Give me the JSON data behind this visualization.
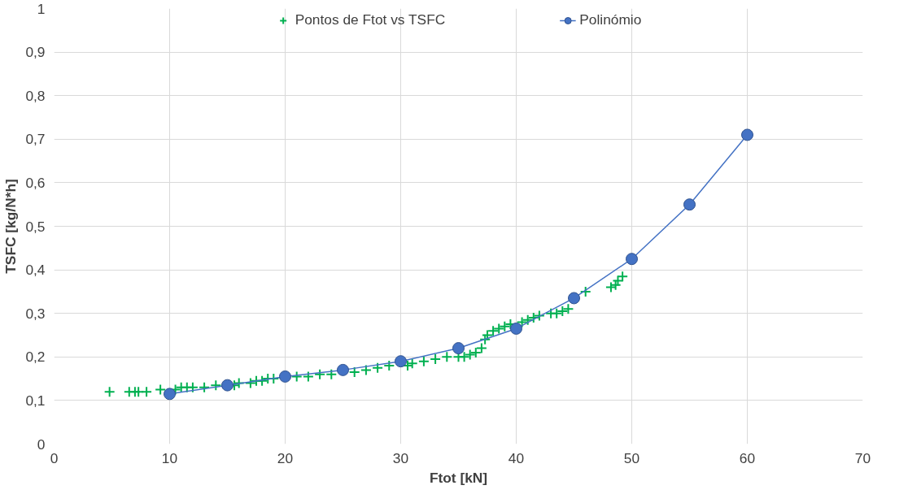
{
  "chart_data": {
    "type": "scatter",
    "xlabel": "Ftot [kN]",
    "ylabel": "TSFC [kg/N*h]",
    "xlim": [
      0,
      70
    ],
    "ylim": [
      0,
      1
    ],
    "xticks": [
      0,
      10,
      20,
      30,
      40,
      50,
      60,
      70
    ],
    "yticks": [
      0,
      {
        "value": 0.1,
        "label": "0,1"
      },
      {
        "value": 0.2,
        "label": "0,2"
      },
      {
        "value": 0.3,
        "label": "0,3"
      },
      {
        "value": 0.4,
        "label": "0,4"
      },
      {
        "value": 0.5,
        "label": "0,5"
      },
      {
        "value": 0.6,
        "label": "0,6"
      },
      {
        "value": 0.7,
        "label": "0,7"
      },
      {
        "value": 0.8,
        "label": "0,8"
      },
      {
        "value": 0.9,
        "label": "0,9"
      },
      1
    ],
    "grid": true,
    "legend": "top",
    "series": [
      {
        "name": "Pontos de Ftot vs TSFC",
        "marker": "cross",
        "color": "#00b050",
        "x": [
          4.8,
          6.5,
          7.0,
          7.3,
          8,
          9.2,
          10.5,
          11,
          11.5,
          12,
          13,
          14,
          15.6,
          16,
          17,
          17.5,
          18,
          18.5,
          19,
          21,
          22,
          23,
          24,
          26,
          27,
          28,
          29,
          30.6,
          31,
          32,
          33,
          34,
          35,
          35.5,
          36,
          36.5,
          37,
          37.3,
          37.5,
          38,
          38.5,
          39,
          39.5,
          40.5,
          41,
          41.5,
          42,
          43,
          43.5,
          44,
          44.5,
          46,
          48.2,
          48.6,
          48.8,
          49.2
        ],
        "values": [
          0.12,
          0.12,
          0.12,
          0.12,
          0.12,
          0.125,
          0.125,
          0.13,
          0.13,
          0.13,
          0.13,
          0.135,
          0.135,
          0.14,
          0.14,
          0.145,
          0.145,
          0.15,
          0.15,
          0.155,
          0.155,
          0.16,
          0.16,
          0.165,
          0.17,
          0.175,
          0.18,
          0.18,
          0.185,
          0.19,
          0.195,
          0.2,
          0.2,
          0.2,
          0.205,
          0.21,
          0.22,
          0.24,
          0.25,
          0.26,
          0.265,
          0.27,
          0.275,
          0.28,
          0.285,
          0.29,
          0.295,
          0.3,
          0.3,
          0.305,
          0.31,
          0.35,
          0.36,
          0.365,
          0.375,
          0.385
        ]
      },
      {
        "name": "Polinómio",
        "type": "line",
        "marker": "circle",
        "color": "#4472c4",
        "x": [
          10,
          15,
          20,
          25,
          30,
          35,
          40,
          45,
          50,
          55,
          60
        ],
        "values": [
          0.115,
          0.135,
          0.155,
          0.17,
          0.19,
          0.22,
          0.265,
          0.335,
          0.425,
          0.55,
          0.71
        ]
      }
    ]
  }
}
